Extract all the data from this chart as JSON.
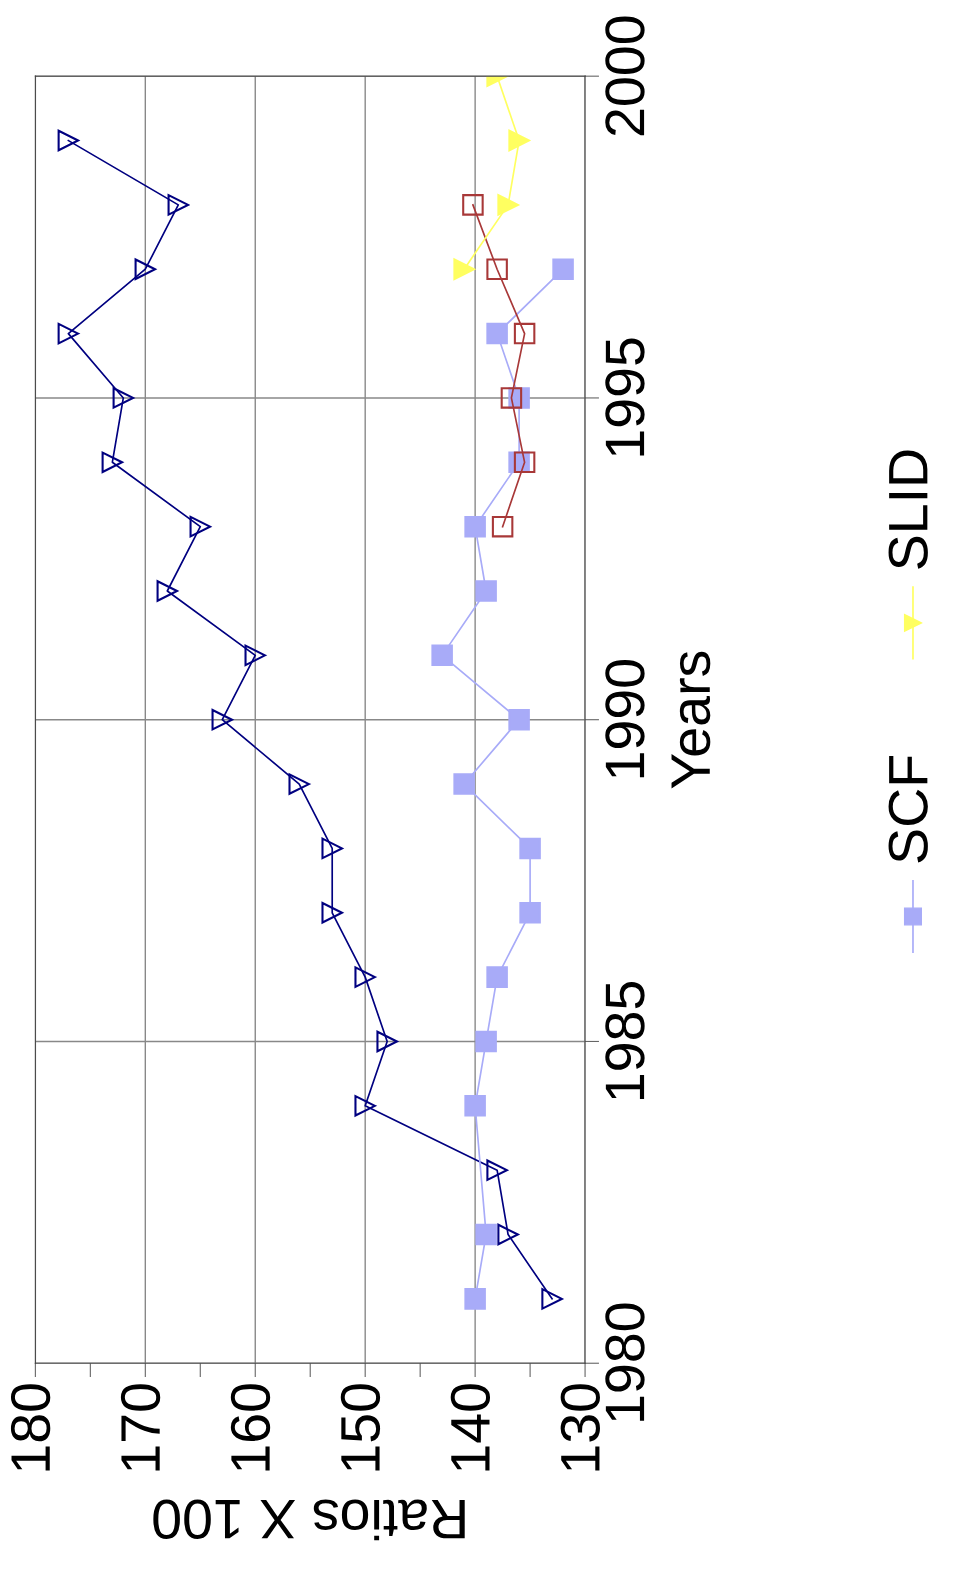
{
  "chart_data": {
    "type": "line",
    "xlabel": "Ratios X 100",
    "ylabel": "Years",
    "xlim": [
      180,
      130
    ],
    "xticks": [
      180,
      {
        "value": 175,
        "label": null
      },
      170,
      {
        "value": 165,
        "label": null
      },
      160,
      {
        "value": 155,
        "label": null
      },
      150,
      {
        "value": 145,
        "label": null
      },
      140,
      {
        "value": 135,
        "label": null
      },
      130
    ],
    "ylim": [
      1980,
      2000
    ],
    "yticks": [
      1980,
      1985,
      1990,
      1995,
      2000
    ],
    "grid": true,
    "legend": "right",
    "series": [
      {
        "color": "#000080",
        "marker": "triangle",
        "values": [
          1981,
          1982,
          1983,
          1984,
          1985,
          1986,
          1987,
          1988,
          1989,
          1990,
          1991,
          1992,
          1993,
          1994,
          1995,
          1996,
          1997,
          1998,
          1999
        ],
        "x": [
          133,
          137,
          138,
          150,
          148,
          150,
          153,
          153,
          156,
          163,
          160,
          168,
          165,
          173,
          172,
          177,
          170,
          167,
          177
        ]
      },
      {
        "name": "SCF",
        "color": "#a8abf8",
        "marker": "square",
        "values": [
          1981,
          1982,
          1984,
          1985,
          1986,
          1987,
          1988,
          1989,
          1990,
          1991,
          1992,
          1993,
          1994,
          1995,
          1996,
          1997
        ],
        "x": [
          140,
          139,
          140,
          139,
          138,
          135,
          135,
          141,
          136,
          143,
          139,
          140,
          136,
          136,
          138,
          132
        ]
      },
      {
        "color": "#a83838",
        "marker": "square",
        "values": [
          1993,
          1994,
          1995,
          1996,
          1997,
          1998
        ],
        "x": [
          137.5,
          135.5,
          136.7,
          135.5,
          138,
          140.2
        ]
      },
      {
        "name": "SLID",
        "color": "#ffff60",
        "marker": "triangle",
        "values": [
          1997,
          1998,
          1999,
          2000
        ],
        "x": [
          141,
          137,
          136,
          138
        ]
      }
    ]
  }
}
